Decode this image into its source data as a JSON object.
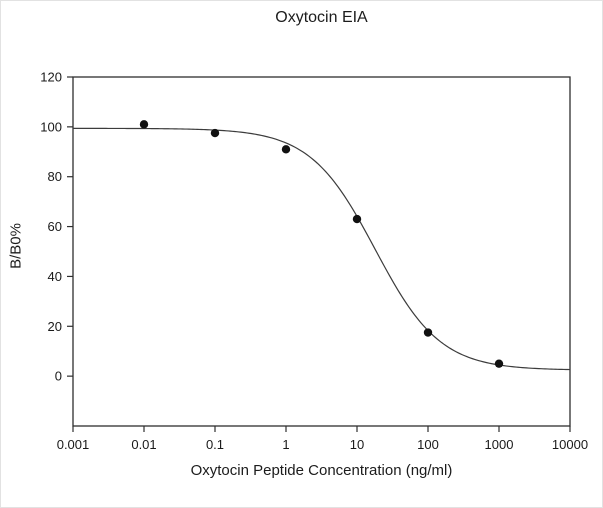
{
  "chart_data": {
    "type": "scatter",
    "title": "Oxytocin EIA",
    "xlabel": "Oxytocin Peptide Concentration (ng/ml)",
    "ylabel": "B/B0%",
    "x_scale": "log",
    "xlim": [
      0.001,
      10000
    ],
    "ylim": [
      -20,
      120
    ],
    "x_tick_values": [
      0.001,
      0.01,
      0.1,
      1,
      10,
      100,
      1000,
      10000
    ],
    "x_tick_labels": [
      "0.001",
      "0.01",
      "0.1",
      "1",
      "10",
      "100",
      "1000",
      "10000"
    ],
    "y_tick_values": [
      0,
      20,
      40,
      60,
      80,
      100,
      120
    ],
    "grid": false,
    "legend": "none",
    "points": [
      {
        "x": 0.01,
        "y": 101
      },
      {
        "x": 0.1,
        "y": 97.5
      },
      {
        "x": 1,
        "y": 91
      },
      {
        "x": 10,
        "y": 63
      },
      {
        "x": 100,
        "y": 17.5
      },
      {
        "x": 1000,
        "y": 5
      }
    ],
    "fit_curve": {
      "model": "4PL",
      "top": 99.4,
      "bottom": 2.4,
      "ic50": 18,
      "hill": 0.95
    },
    "marker": {
      "shape": "circle",
      "color": "#111111",
      "radius_px": 4.2
    },
    "colors": {
      "curve": "#3c3c3c",
      "frame": "#2e2e2e",
      "text": "#1a1a1a"
    }
  }
}
